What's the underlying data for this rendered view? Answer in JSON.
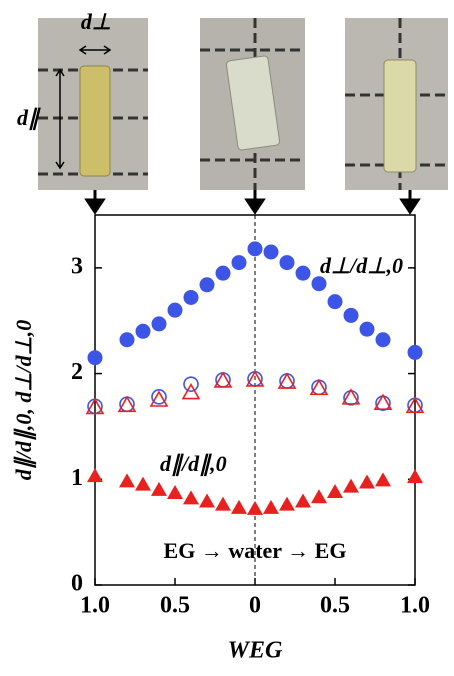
{
  "chart_data": {
    "type": "scatter",
    "photo_labels": {
      "perpendicular": "d⊥",
      "parallel": "d∥"
    },
    "ylabel": "d∥/d∥,0, d⊥/d⊥,0",
    "xlabel": "WEG",
    "annotation": "EG → water → EG",
    "xlim": [
      -1,
      1
    ],
    "ylim": [
      0,
      3.5
    ],
    "xticks": [
      {
        "value": -1,
        "label": "1.0"
      },
      {
        "value": -0.5,
        "label": "0.5"
      },
      0,
      {
        "value": 0.5,
        "label": "0.5"
      },
      {
        "value": 1,
        "label": "1.0"
      }
    ],
    "yticks": [
      0,
      1,
      2,
      3
    ],
    "series": [
      {
        "name": "d⊥/d⊥,0",
        "color": "#3d55e6",
        "marker": "circle",
        "filled": true,
        "x": [
          -1,
          -0.8,
          -0.7,
          -0.6,
          -0.5,
          -0.4,
          -0.3,
          -0.2,
          -0.1,
          0,
          0.1,
          0.2,
          0.3,
          0.4,
          0.5,
          0.6,
          0.7,
          0.8,
          1
        ],
        "values": [
          2.15,
          2.32,
          2.4,
          2.47,
          2.6,
          2.72,
          2.84,
          2.95,
          3.05,
          3.18,
          3.15,
          3.05,
          2.95,
          2.85,
          2.68,
          2.55,
          2.42,
          2.32,
          2.2
        ]
      },
      {
        "name": "d∥/d∥,0",
        "color": "#e8201e",
        "marker": "triangle",
        "filled": true,
        "x": [
          -1,
          -0.8,
          -0.7,
          -0.6,
          -0.5,
          -0.4,
          -0.3,
          -0.2,
          -0.1,
          0,
          0.1,
          0.2,
          0.3,
          0.4,
          0.5,
          0.6,
          0.7,
          0.8,
          1
        ],
        "values": [
          1.03,
          0.98,
          0.95,
          0.9,
          0.87,
          0.82,
          0.79,
          0.76,
          0.73,
          0.72,
          0.73,
          0.76,
          0.79,
          0.83,
          0.88,
          0.93,
          0.97,
          0.99,
          1.02
        ]
      },
      {
        "color": "#3d55e6",
        "marker": "circle",
        "filled": false,
        "x": [
          -1,
          -0.8,
          -0.6,
          -0.4,
          -0.2,
          0,
          0.2,
          0.4,
          0.6,
          0.8,
          1
        ],
        "values": [
          1.69,
          1.71,
          1.78,
          1.9,
          1.94,
          1.95,
          1.93,
          1.87,
          1.77,
          1.72,
          1.7
        ]
      },
      {
        "color": "#e8201e",
        "marker": "triangle",
        "filled": false,
        "x": [
          -1,
          -0.8,
          -0.6,
          -0.4,
          -0.2,
          0,
          0.2,
          0.4,
          0.6,
          0.8,
          1
        ],
        "values": [
          1.68,
          1.7,
          1.75,
          1.82,
          1.93,
          1.94,
          1.92,
          1.86,
          1.77,
          1.72,
          1.69
        ]
      }
    ]
  }
}
